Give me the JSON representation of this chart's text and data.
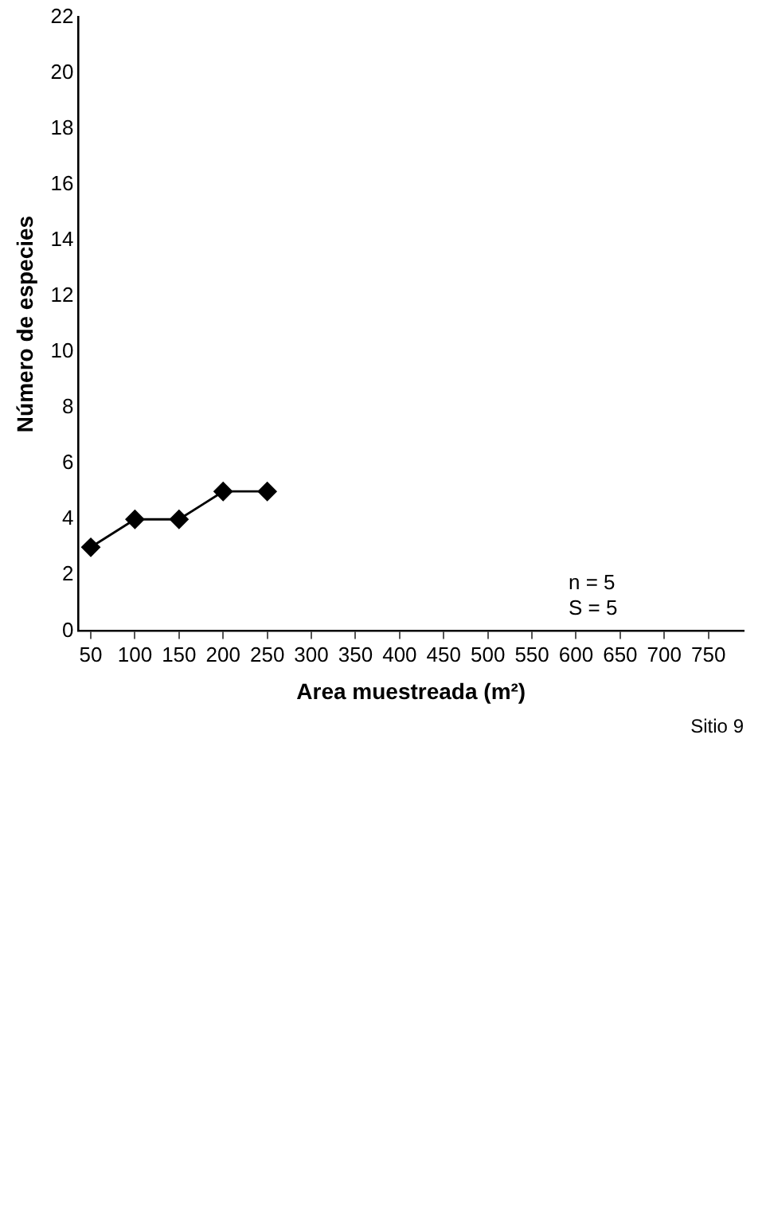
{
  "chart_data": {
    "type": "line",
    "title": "Sitio 9",
    "xlabel": "Area muestreada (m²)",
    "ylabel": "Número de especies",
    "annotations": [
      "n = 5",
      "S = 5"
    ],
    "x": [
      50,
      100,
      150,
      200,
      250
    ],
    "series": [
      {
        "color": "#000000",
        "values": [
          3,
          4,
          4,
          5,
          5
        ]
      }
    ],
    "xlim": [
      36,
      790
    ],
    "xticks": [
      50,
      100,
      150,
      200,
      250,
      300,
      350,
      400,
      450,
      500,
      550,
      600,
      650,
      700,
      750
    ],
    "ylim": [
      0,
      22
    ],
    "yticks": [
      0,
      2,
      4,
      6,
      8,
      10,
      12,
      14,
      16,
      18,
      20,
      22
    ],
    "grid": false,
    "marker": "diamond",
    "line_style": "solid"
  }
}
